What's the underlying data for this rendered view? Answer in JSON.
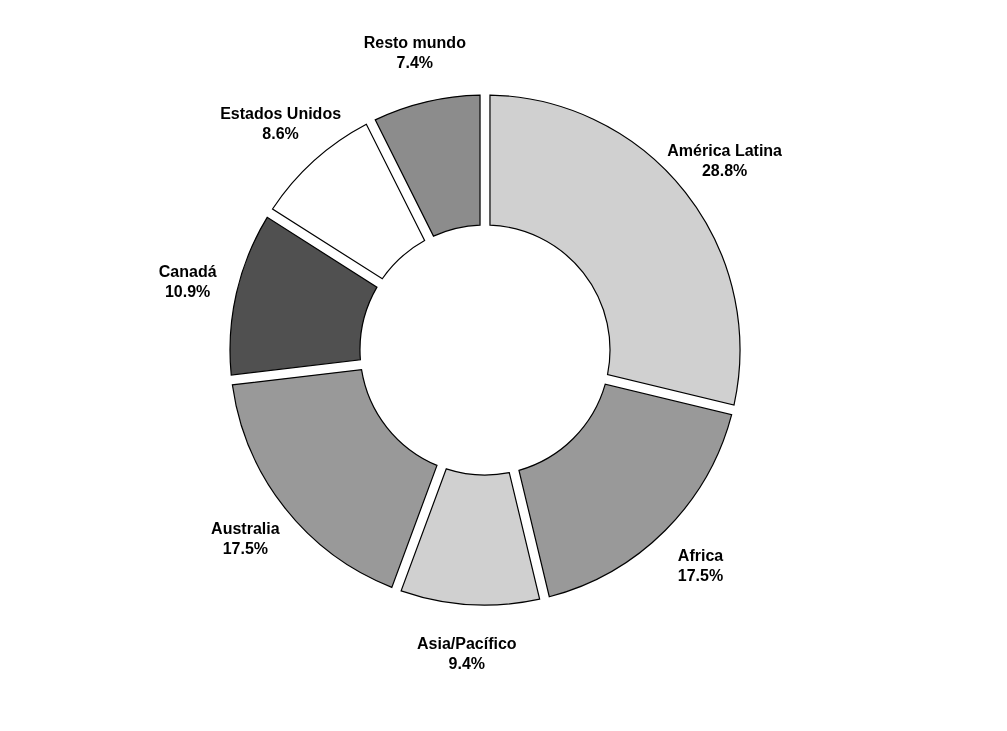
{
  "chart_data": {
    "type": "donut",
    "categories": [
      "América Latina",
      "Africa",
      "Asia/Pacífico",
      "Australia",
      "Canadá",
      "Estados Unidos",
      "Resto mundo"
    ],
    "values": [
      28.8,
      17.5,
      9.4,
      17.5,
      10.9,
      8.6,
      7.4
    ],
    "value_labels": [
      "28.8%",
      "17.5%",
      "9.4%",
      "17.5%",
      "10.9%",
      "8.6%",
      "7.4%"
    ],
    "colors": [
      "#d0d0d0",
      "#999999",
      "#d0d0d0",
      "#999999",
      "#505050",
      "#ffffff",
      "#8c8c8c"
    ],
    "legend": false
  }
}
